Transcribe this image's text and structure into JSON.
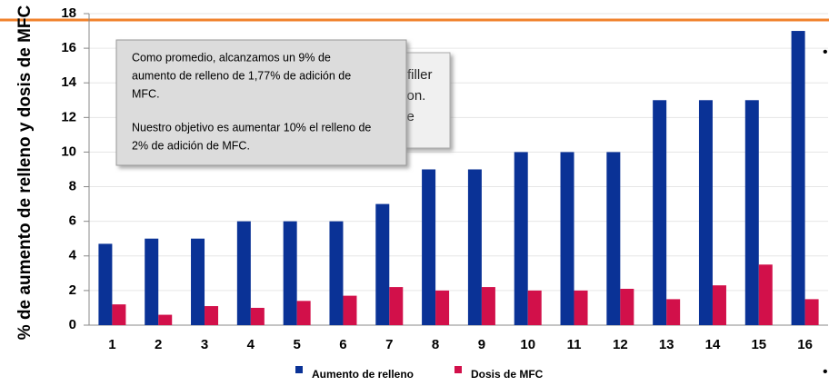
{
  "chart_data": {
    "type": "bar",
    "y_label": "% de aumento de relleno y dosis de MFC",
    "categories": [
      "1",
      "2",
      "3",
      "4",
      "5",
      "6",
      "7",
      "8",
      "9",
      "10",
      "11",
      "12",
      "13",
      "14",
      "15",
      "16"
    ],
    "series": [
      {
        "name": "Aumento de relleno",
        "color": "#0a3296",
        "values": [
          4.7,
          5,
          5,
          6,
          6,
          6,
          7,
          9,
          9,
          10,
          10,
          10,
          13,
          13,
          13,
          17
        ]
      },
      {
        "name": "Dosis de MFC",
        "color": "#d2104a",
        "values": [
          1.2,
          0.6,
          1.1,
          1.0,
          1.4,
          1.7,
          2.2,
          2.0,
          2.2,
          2.0,
          2.0,
          2.1,
          1.5,
          2.3,
          3.5,
          1.5
        ]
      }
    ],
    "ylim": [
      0,
      18
    ],
    "yticks": [
      0,
      2,
      4,
      6,
      8,
      10,
      12,
      14,
      16,
      18
    ],
    "grid": true,
    "annotation_back": [
      "filler",
      "tion.",
      "se"
    ],
    "annotation": {
      "paragraph1": [
        "Como promedio, alcanzamos un 9% de",
        "aumento de relleno de 1,77% de adición de",
        "MFC."
      ],
      "paragraph2": [
        "Nuestro objetivo es aumentar 10% el relleno de",
        "2% de adición de MFC."
      ]
    }
  }
}
